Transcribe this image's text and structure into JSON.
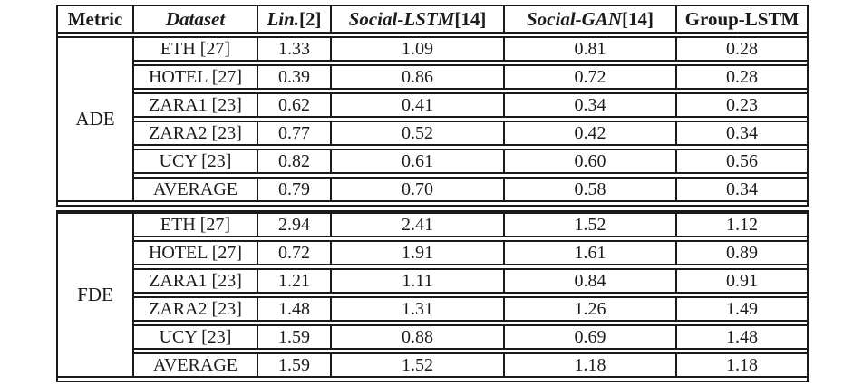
{
  "header": {
    "metric": "Metric",
    "dataset": "Dataset",
    "methods": [
      {
        "name": "Lin.",
        "ref": "[2]"
      },
      {
        "name": "Social-LSTM",
        "ref": "[14]"
      },
      {
        "name": "Social-GAN",
        "ref": "[14]"
      },
      {
        "name": "Group-LSTM",
        "ref": ""
      }
    ]
  },
  "sections": [
    {
      "metric": "ADE",
      "rows": [
        {
          "dataset": "ETH [27]",
          "values": [
            "1.33",
            "1.09",
            "0.81",
            "0.28"
          ]
        },
        {
          "dataset": "HOTEL [27]",
          "values": [
            "0.39",
            "0.86",
            "0.72",
            "0.28"
          ]
        },
        {
          "dataset": "ZARA1 [23]",
          "values": [
            "0.62",
            "0.41",
            "0.34",
            "0.23"
          ]
        },
        {
          "dataset": "ZARA2 [23]",
          "values": [
            "0.77",
            "0.52",
            "0.42",
            "0.34"
          ]
        },
        {
          "dataset": "UCY [23]",
          "values": [
            "0.82",
            "0.61",
            "0.60",
            "0.56"
          ]
        },
        {
          "dataset": "AVERAGE",
          "values": [
            "0.79",
            "0.70",
            "0.58",
            "0.34"
          ]
        }
      ]
    },
    {
      "metric": "FDE",
      "rows": [
        {
          "dataset": "ETH [27]",
          "values": [
            "2.94",
            "2.41",
            "1.52",
            "1.12"
          ]
        },
        {
          "dataset": "HOTEL [27]",
          "values": [
            "0.72",
            "1.91",
            "1.61",
            "0.89"
          ]
        },
        {
          "dataset": "ZARA1 [23]",
          "values": [
            "1.21",
            "1.11",
            "0.84",
            "0.91"
          ]
        },
        {
          "dataset": "ZARA2 [23]",
          "values": [
            "1.48",
            "1.31",
            "1.26",
            "1.49"
          ]
        },
        {
          "dataset": "UCY [23]",
          "values": [
            "1.59",
            "0.88",
            "0.69",
            "1.48"
          ]
        },
        {
          "dataset": "AVERAGE",
          "values": [
            "1.59",
            "1.52",
            "1.18",
            "1.18"
          ]
        }
      ]
    }
  ],
  "colors": {
    "border": "#1a1a1a",
    "text": "#1c1c1c",
    "background": "#ffffff"
  }
}
